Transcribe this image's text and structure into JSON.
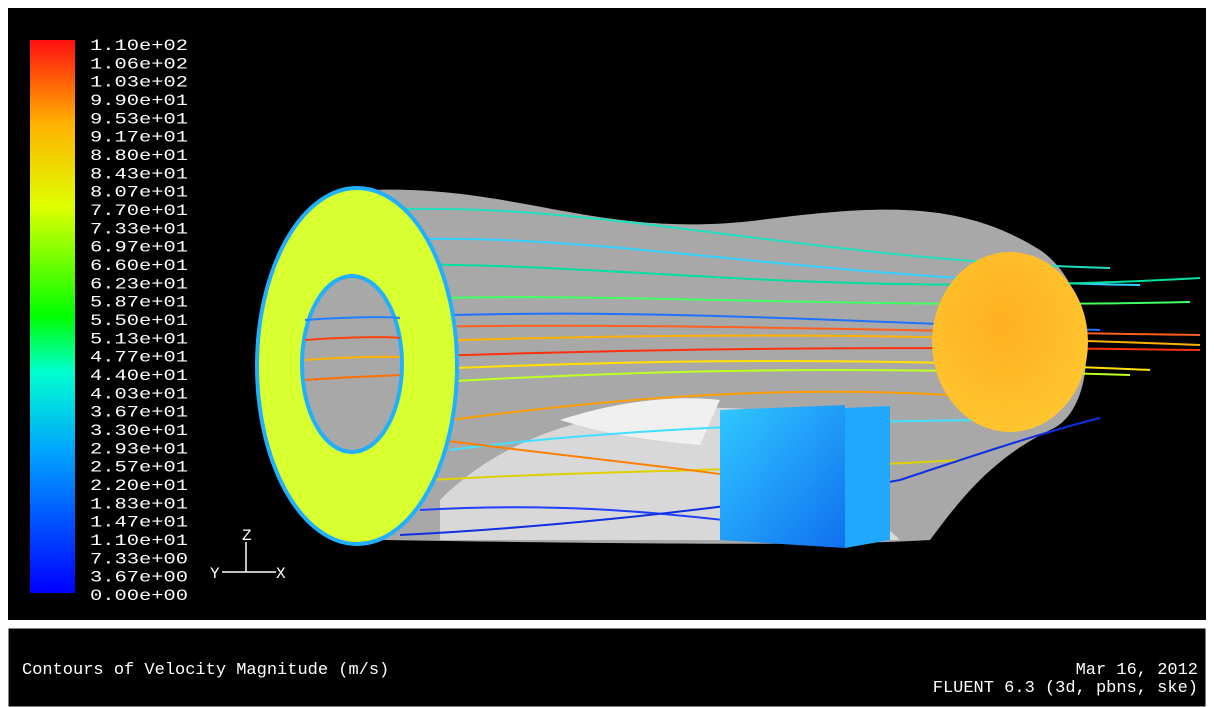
{
  "legend": {
    "labels": [
      "1.10e+02",
      "1.06e+02",
      "1.03e+02",
      "9.90e+01",
      "9.53e+01",
      "9.17e+01",
      "8.80e+01",
      "8.43e+01",
      "8.07e+01",
      "7.70e+01",
      "7.33e+01",
      "6.97e+01",
      "6.60e+01",
      "6.23e+01",
      "5.87e+01",
      "5.50e+01",
      "5.13e+01",
      "4.77e+01",
      "4.40e+01",
      "4.03e+01",
      "3.67e+01",
      "3.30e+01",
      "2.93e+01",
      "2.57e+01",
      "2.20e+01",
      "1.83e+01",
      "1.47e+01",
      "1.10e+01",
      "7.33e+00",
      "3.67e+00",
      "0.00e+00"
    ]
  },
  "axes": {
    "z": "Z",
    "y": "Y",
    "x": "X"
  },
  "footer": {
    "title": "Contours of Velocity Magnitude (m/s)",
    "date": "Mar 16, 2012",
    "version": "FLUENT 6.3 (3d, pbns, ske)"
  }
}
